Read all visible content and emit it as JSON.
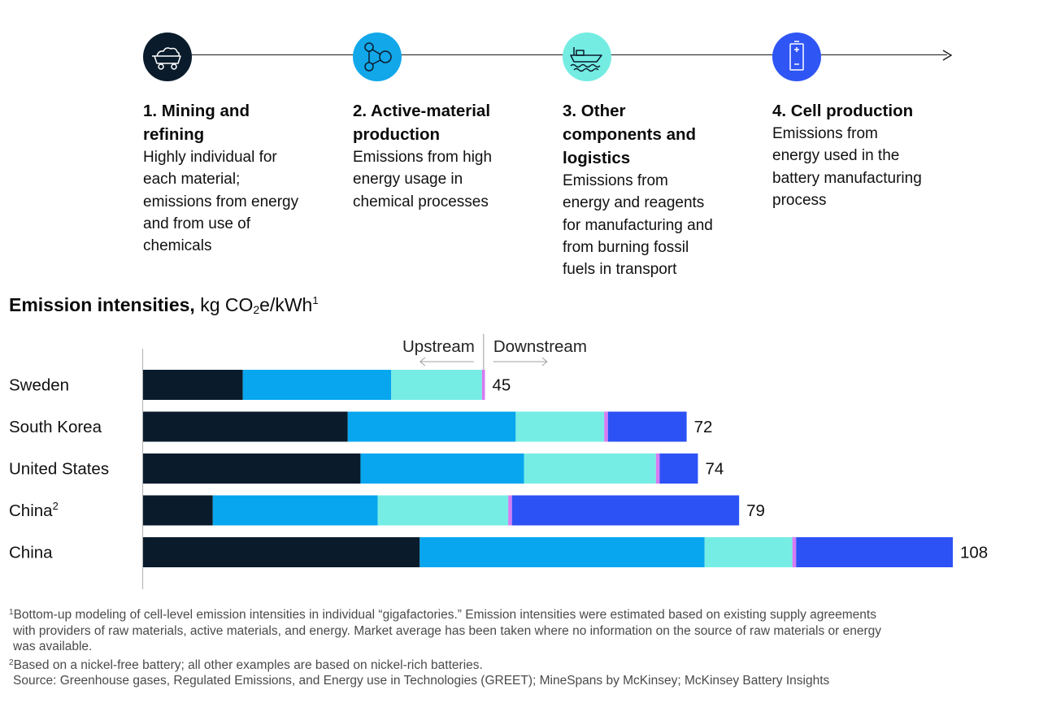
{
  "process": {
    "stages": [
      {
        "icon": "mining-cart-icon",
        "color": "#0a1c2c",
        "title": "1. Mining and\nrefining",
        "description": "Highly individual for\neach material;\nemissions from energy\nand from use of\nchemicals"
      },
      {
        "icon": "molecule-icon",
        "color": "#12a7e9",
        "title": "2. Active-material\nproduction",
        "description": "Emissions from high\nenergy usage in\nchemical processes"
      },
      {
        "icon": "ship-icon",
        "color": "#74ece2",
        "title": "3. Other\ncomponents and\nlogistics",
        "description": "Emissions from\nenergy and reagents\nfor manufacturing and\nfrom burning fossil\nfuels in transport"
      },
      {
        "icon": "battery-icon",
        "color": "#2f55f5",
        "title": "4. Cell production",
        "description": "Emissions from\nenergy used in the\nbattery manufacturing\nprocess"
      }
    ]
  },
  "heading": {
    "bold": "Emission intensities,",
    "unit_prefix": "kg CO",
    "unit_sub": "2",
    "unit_suffix": "e/kWh",
    "unit_sup": "1"
  },
  "chart_data": {
    "type": "bar",
    "orientation": "horizontal",
    "stacked": true,
    "categories": [
      "Sweden",
      "South Korea",
      "United States",
      "China",
      "China"
    ],
    "category_superscripts": [
      "",
      "",
      "",
      "2",
      ""
    ],
    "totals": [
      "45",
      "72",
      "74",
      "79",
      "108"
    ],
    "series": [
      {
        "values": [
          13.3,
          27.3,
          29.0,
          9.3,
          36.9
        ],
        "color": "#0a1c2c"
      },
      {
        "values": [
          19.8,
          22.4,
          21.8,
          22.0,
          38.0
        ],
        "color": "#07a6ef"
      },
      {
        "values": [
          12.1,
          11.8,
          17.6,
          17.4,
          11.7
        ],
        "color": "#76ede4"
      },
      {
        "values": [
          0.4,
          0.5,
          0.5,
          0.5,
          0.5
        ],
        "color": "#d57cf2"
      },
      {
        "values": [
          0.0,
          10.5,
          5.1,
          30.3,
          20.9
        ],
        "color": "#2c52f5"
      }
    ],
    "direction_labels": {
      "upstream": "Upstream",
      "downstream": "Downstream"
    },
    "xlim": [
      0,
      108
    ]
  },
  "footnotes": {
    "note1_mark": "1",
    "note1_lines": [
      "Bottom-up modeling of cell-level emission intensities in individual “gigafactories.” Emission intensities were estimated based on existing supply agreements",
      "with providers of raw materials, active materials, and energy. Market average has been taken where no information on the source of raw materials or energy",
      "was available."
    ],
    "note2_mark": "2",
    "note2": "Based on a nickel-free battery; all other examples are based on nickel-rich batteries.",
    "source": "Source: Greenhouse gases, Regulated Emissions, and Energy use in Technologies (GREET); MineSpans by McKinsey; McKinsey Battery Insights"
  }
}
